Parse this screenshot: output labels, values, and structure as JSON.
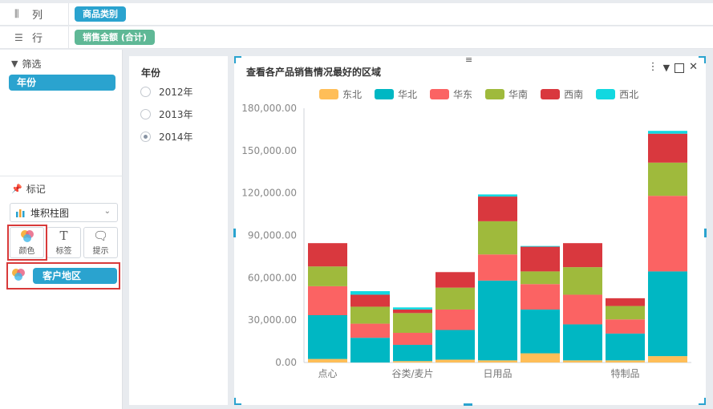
{
  "shelves": {
    "columns": {
      "label": "列",
      "icon": "columns-icon",
      "field": "商品类别"
    },
    "rows": {
      "label": "行",
      "icon": "rows-icon",
      "field": "销售金额 (合计)"
    }
  },
  "filter": {
    "title": "筛选",
    "field": "年份"
  },
  "marks": {
    "title": "标记",
    "chart_type": "堆积柱图",
    "buttons": {
      "color": "颜色",
      "label": "标签",
      "tooltip": "提示"
    },
    "color_field": "客户地区"
  },
  "year_filter": {
    "title": "年份",
    "options": [
      "2012年",
      "2013年",
      "2014年"
    ],
    "selected": "2014年"
  },
  "chart_title": "查看各产品销售情况最好的区域",
  "colors": {
    "accent": "#2aa3cf",
    "green_pill": "#5fb896",
    "highlight": "#d83a3a"
  },
  "chart_data": {
    "type": "bar",
    "stacked": true,
    "title": "查看各产品销售情况最好的区域",
    "x_tick_labels": [
      "点心",
      "谷类/麦片",
      "日用品",
      "特制品"
    ],
    "categories": [
      "点心",
      "",
      "谷类/麦片",
      "",
      "日用品",
      "",
      "",
      "特制品",
      ""
    ],
    "ylim": [
      0,
      180000
    ],
    "yticks": [
      "0.00",
      "30,000.00",
      "60,000.00",
      "90,000.00",
      "120,000.00",
      "150,000.00",
      "180,000.00"
    ],
    "legend_position": "top",
    "grid": false,
    "series": [
      {
        "name": "东北",
        "color": "#ffbe58",
        "values": [
          2500,
          0,
          1000,
          2000,
          1500,
          6500,
          1500,
          1500,
          4500
        ]
      },
      {
        "name": "华北",
        "color": "#00b7c3",
        "values": [
          31000,
          17500,
          11500,
          21000,
          56500,
          31000,
          25500,
          19000,
          60000
        ]
      },
      {
        "name": "华东",
        "color": "#fb6363",
        "values": [
          20500,
          10000,
          8500,
          14500,
          18500,
          18000,
          21000,
          10000,
          53500
        ]
      },
      {
        "name": "华南",
        "color": "#9fba3c",
        "values": [
          14000,
          12000,
          14000,
          15500,
          23500,
          9000,
          19500,
          9500,
          23500
        ]
      },
      {
        "name": "西南",
        "color": "#d9383e",
        "values": [
          16500,
          8500,
          2500,
          11000,
          17500,
          17500,
          17000,
          5500,
          20500
        ]
      },
      {
        "name": "西北",
        "color": "#12d8e0",
        "values": [
          0,
          2500,
          1500,
          0,
          1500,
          500,
          0,
          0,
          2000
        ]
      }
    ]
  }
}
